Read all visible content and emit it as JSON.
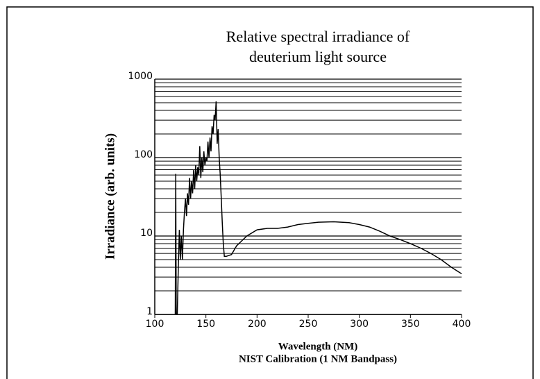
{
  "chart_data": {
    "type": "line",
    "title": [
      "Relative spectral irradiance of",
      "deuterium light source"
    ],
    "xlabel": "Wavelength (NM)",
    "subtitle": "NIST Calibration (1 NM Bandpass)",
    "ylabel": "Irradiance (arb. units)",
    "log_y": true,
    "grid": true,
    "xlim": [
      100,
      400
    ],
    "xticks": [
      100,
      150,
      200,
      250,
      300,
      350,
      400
    ],
    "ylim": [
      1,
      1000
    ],
    "yticks": [
      1,
      10,
      100,
      1000
    ],
    "yminor": [
      2,
      3,
      4,
      5,
      6,
      7,
      8,
      9,
      20,
      30,
      40,
      50,
      60,
      70,
      80,
      90,
      200,
      300,
      400,
      500,
      600,
      700,
      800,
      900
    ],
    "series": [
      {
        "name": "Irradiance",
        "color": "#000000",
        "x": [
          120,
          120.5,
          121,
          122,
          123,
          124,
          125,
          126,
          127,
          128,
          129,
          130,
          131,
          132,
          133,
          134,
          135,
          136,
          137,
          138,
          139,
          140,
          141,
          142,
          143,
          144,
          145,
          146,
          147,
          148,
          149,
          150,
          151,
          152,
          153,
          154,
          155,
          156,
          157,
          158,
          159,
          160,
          161,
          162,
          163,
          164,
          165,
          166,
          167,
          168,
          170,
          175,
          180,
          190,
          200,
          210,
          220,
          230,
          240,
          250,
          260,
          275,
          290,
          300,
          310,
          320,
          330,
          340,
          350,
          360,
          370,
          380,
          390,
          400
        ],
        "values": [
          1,
          62,
          1,
          1,
          4,
          12,
          5,
          10,
          5,
          12,
          20,
          30,
          18,
          35,
          25,
          55,
          30,
          50,
          35,
          70,
          40,
          80,
          50,
          75,
          60,
          140,
          55,
          100,
          65,
          120,
          80,
          100,
          90,
          160,
          100,
          180,
          120,
          250,
          200,
          350,
          300,
          520,
          150,
          230,
          100,
          60,
          30,
          15,
          8,
          5.5,
          5.5,
          5.8,
          7.5,
          10,
          12,
          12.5,
          12.5,
          13,
          14,
          14.5,
          15,
          15.2,
          14.8,
          14,
          13,
          11.5,
          10,
          9,
          8,
          7,
          6,
          5,
          4,
          3.3
        ]
      }
    ]
  }
}
